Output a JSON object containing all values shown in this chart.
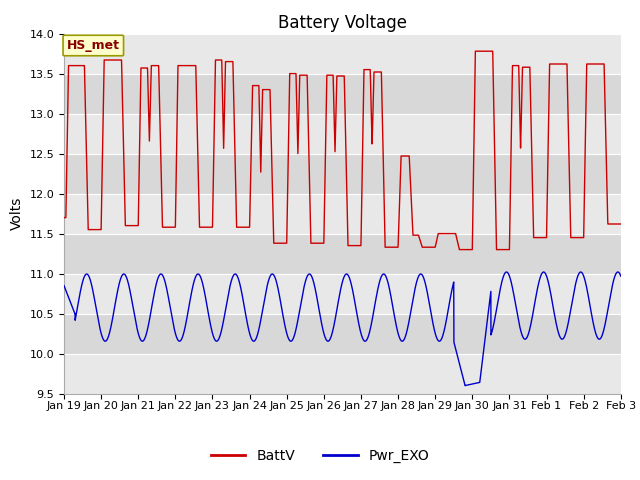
{
  "title": "Battery Voltage",
  "ylabel": "Volts",
  "ylim": [
    9.5,
    14.0
  ],
  "yticks": [
    9.5,
    10.0,
    10.5,
    11.0,
    11.5,
    12.0,
    12.5,
    13.0,
    13.5,
    14.0
  ],
  "xlabel_labels": [
    "Jan 19",
    "Jan 20",
    "Jan 21",
    "Jan 22",
    "Jan 23",
    "Jan 24",
    "Jan 25",
    "Jan 26",
    "Jan 27",
    "Jan 28",
    "Jan 29",
    "Jan 30",
    "Jan 31",
    "Feb 1",
    "Feb 2",
    "Feb 3"
  ],
  "batt_color": "#cc0000",
  "pwr_color": "#0000cc",
  "bg_color": "#ffffff",
  "plot_bg_color": "#e0e0e0",
  "stripe_color": "#cccccc",
  "legend_label_batt": "BattV",
  "legend_label_pwr": "Pwr_EXO",
  "hs_met_label": "HS_met",
  "hs_met_bg": "#ffffcc",
  "hs_met_border": "#999900",
  "title_fontsize": 12,
  "axis_fontsize": 10,
  "tick_fontsize": 8,
  "legend_fontsize": 10
}
